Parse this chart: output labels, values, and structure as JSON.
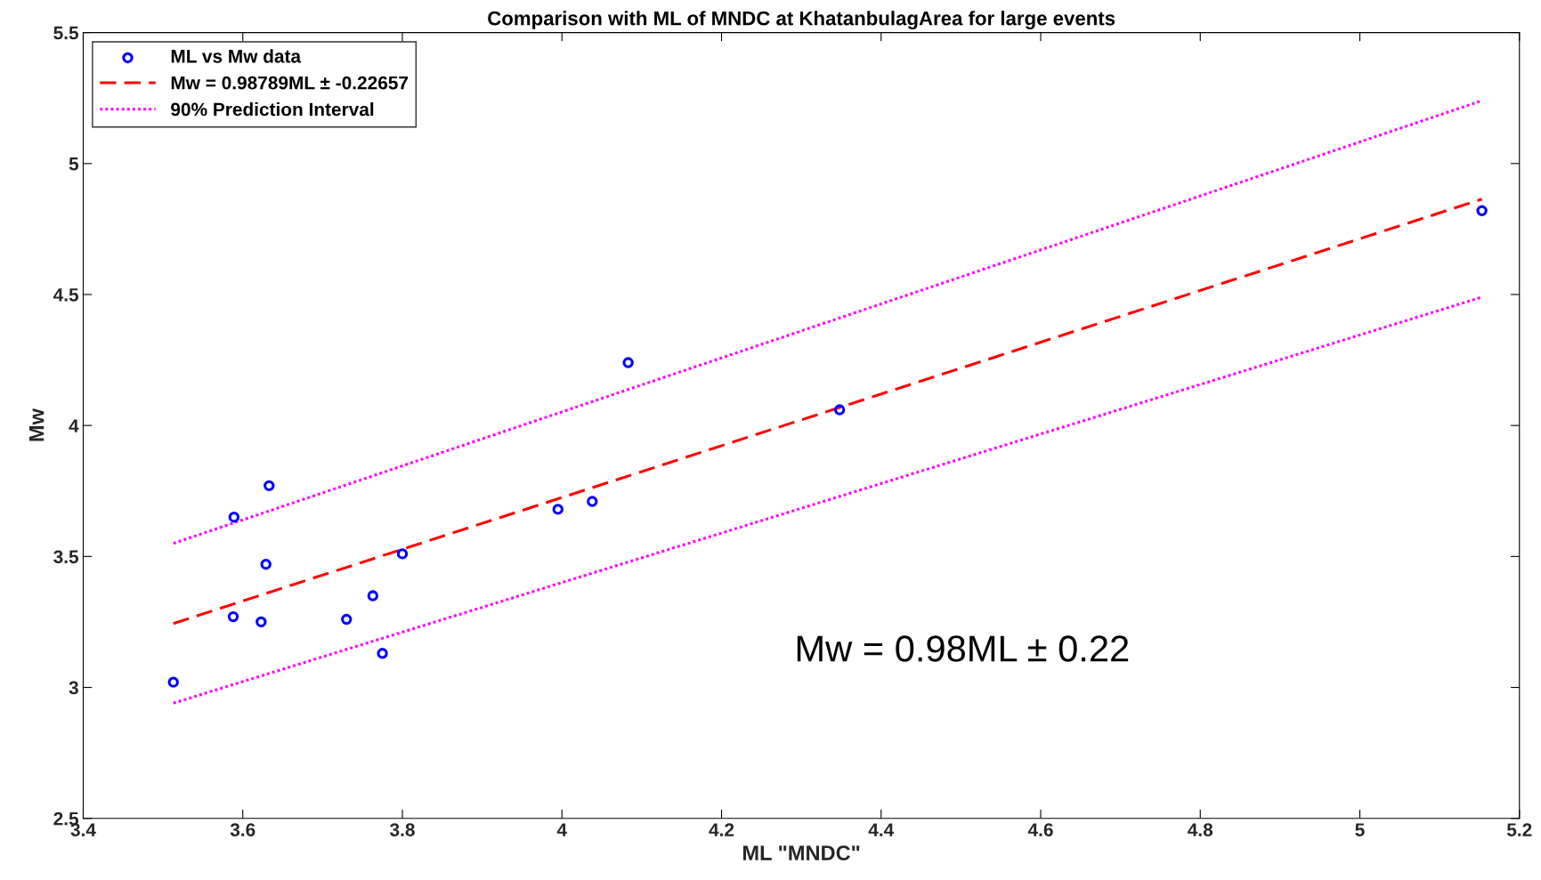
{
  "chart_data": {
    "type": "scatter",
    "title": "Comparison with ML of MNDC at KhatanbulagArea for large events",
    "xlabel": "ML \"MNDC\"",
    "ylabel": "Mw",
    "series": [
      {
        "name": "ML vs Mw data",
        "color": "#0000ff",
        "marker": "circle",
        "x": [
          3.513,
          3.588,
          3.589,
          3.623,
          3.629,
          3.633,
          3.73,
          3.763,
          3.775,
          3.8,
          3.995,
          4.038,
          4.083,
          4.348,
          5.153
        ],
        "values": [
          3.02,
          3.27,
          3.65,
          3.25,
          3.47,
          3.77,
          3.26,
          3.35,
          3.13,
          3.51,
          3.68,
          3.71,
          4.24,
          4.06,
          4.82
        ]
      },
      {
        "name": "Mw = 0.98789ML ± -0.22657",
        "type": "line",
        "color": "#ff0000",
        "line_style": "dashed",
        "x": [
          3.513,
          5.153
        ],
        "values": [
          3.244,
          4.864
        ]
      },
      {
        "name": "90% Prediction Interval",
        "type": "line",
        "color": "#ff00ff",
        "line_style": "dotted",
        "x": [
          3.513,
          5.153
        ],
        "values": [
          3.55,
          5.24
        ]
      },
      {
        "type": "line",
        "color": "#ff00ff",
        "line_style": "dotted",
        "x": [
          3.513,
          5.153
        ],
        "values": [
          2.94,
          4.49
        ]
      }
    ],
    "annotations": [
      "Mw = 0.98ML ± 0.22"
    ],
    "xlim": [
      3.4,
      5.2
    ],
    "ylim": [
      2.5,
      5.5
    ],
    "xticks": [
      3.4,
      3.6,
      3.8,
      4,
      4.2,
      4.4,
      4.6,
      4.8,
      5,
      5.2
    ],
    "yticks": [
      2.5,
      3,
      3.5,
      4,
      4.5,
      5,
      5.5
    ],
    "grid": false,
    "legend": "top left"
  }
}
